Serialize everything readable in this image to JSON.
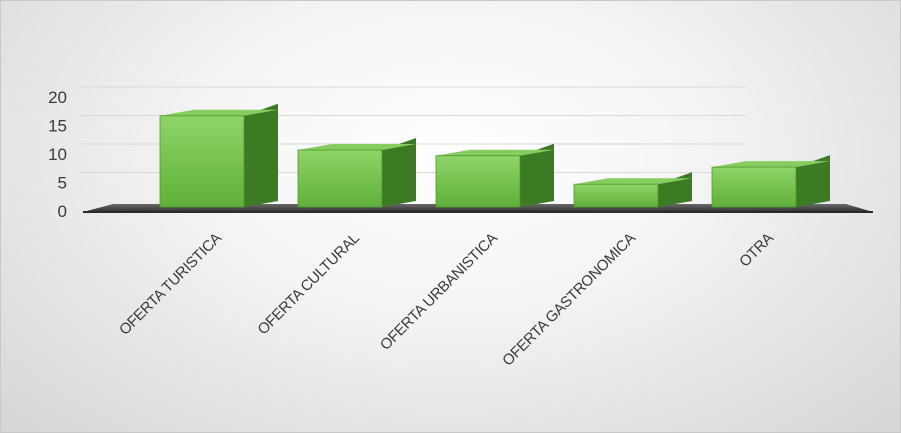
{
  "chart_data": {
    "type": "bar",
    "categories": [
      "OFERTA TURISTICA",
      "OFERTA CULTURAL",
      "OFERTA URBANISTICA",
      "OFERTA GASTRONOMICA",
      "OTRA"
    ],
    "values": [
      16,
      10,
      9,
      4,
      7
    ],
    "title": "",
    "xlabel": "",
    "ylabel": "",
    "ylim": [
      0,
      20
    ],
    "yticks": [
      "0",
      "5",
      "10",
      "15",
      "20"
    ],
    "grid": true,
    "legend": "none",
    "style": "3d-column"
  },
  "colors": {
    "bar_front": "#6abf45",
    "bar_front_light": "#8fd468",
    "bar_side": "#3d7a24",
    "bar_top": "#86cc5e",
    "floor": "#3a3a3a",
    "grid": "#d9d9d9"
  }
}
